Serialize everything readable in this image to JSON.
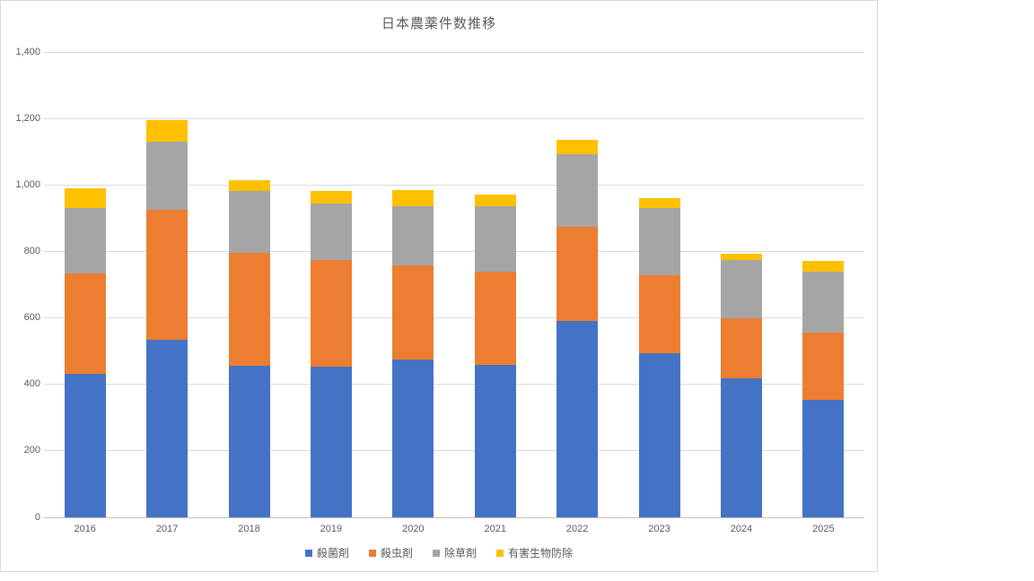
{
  "chart_title": "日本農薬件数推移",
  "colors": {
    "fungicide": "#4472C4",
    "insecticide": "#ED7D31",
    "herbicide": "#A5A5A5",
    "pest_control": "#FFC000",
    "gridline": "#D9D9D9",
    "axis_line": "#BFBFBF",
    "text": "#595959",
    "frame_border": "#D9D9D9",
    "background": "#FFFFFF"
  },
  "chart_data": {
    "type": "bar",
    "stacked": true,
    "title": "日本農薬件数推移",
    "categories": [
      "2016",
      "2017",
      "2018",
      "2019",
      "2020",
      "2021",
      "2022",
      "2023",
      "2024",
      "2025"
    ],
    "series": [
      {
        "key": "fungicide",
        "name": "殺菌剤",
        "color": "#4472C4",
        "values": [
          432,
          533,
          455,
          452,
          474,
          459,
          591,
          494,
          418,
          353
        ]
      },
      {
        "key": "insecticide",
        "name": "殺虫剤",
        "color": "#ED7D31",
        "values": [
          303,
          392,
          341,
          322,
          284,
          281,
          283,
          235,
          181,
          202
        ]
      },
      {
        "key": "herbicide",
        "name": "除草剤",
        "color": "#A5A5A5",
        "values": [
          195,
          205,
          186,
          169,
          178,
          196,
          218,
          203,
          175,
          185
        ]
      },
      {
        "key": "pest_control",
        "name": "有害生物防除",
        "color": "#FFC000",
        "values": [
          59,
          65,
          33,
          39,
          49,
          36,
          45,
          29,
          20,
          32
        ]
      }
    ],
    "stack_totals": [
      989,
      1195,
      1015,
      982,
      985,
      972,
      1137,
      961,
      794,
      772
    ],
    "xlabel": "",
    "ylabel": "",
    "ylim": [
      0,
      1400
    ],
    "ytick_step": 200,
    "ytick_labels": [
      "0",
      "200",
      "400",
      "600",
      "800",
      "1,000",
      "1,200",
      "1,400"
    ],
    "grid": true,
    "legend_position": "bottom"
  }
}
